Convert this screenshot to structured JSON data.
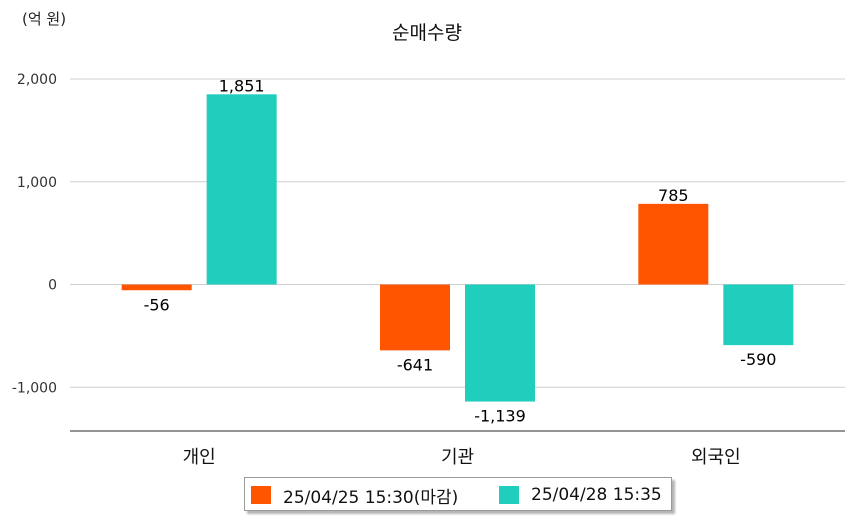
{
  "chart_data": {
    "type": "bar",
    "title": "순매수량",
    "unit_label": "(억 원)",
    "categories": [
      "개인",
      "기관",
      "외국인"
    ],
    "series": [
      {
        "name": "25/04/25 15:30(마감)",
        "color": "#FF5500",
        "values": [
          -56,
          -641,
          785
        ],
        "labels": [
          "-56",
          "-641",
          "785"
        ]
      },
      {
        "name": "25/04/28 15:35",
        "color": "#1FCEBC",
        "values": [
          1851,
          -1139,
          -590
        ],
        "labels": [
          "1,851",
          "-1,139",
          "-590"
        ]
      }
    ],
    "ylim": [
      -1450,
      2000
    ],
    "yticks": [
      2000,
      1000,
      0,
      -1000
    ],
    "ytick_labels": [
      "2,000",
      "1,000",
      "0",
      "-1,000"
    ],
    "grid": true,
    "legend": "bottom"
  }
}
